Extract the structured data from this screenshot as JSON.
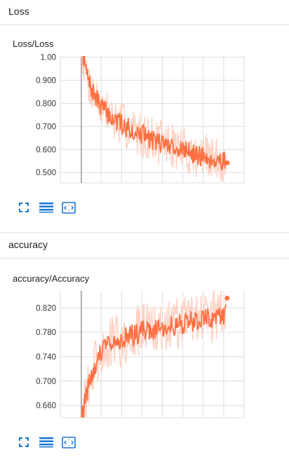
{
  "sections": [
    {
      "title": "Loss"
    },
    {
      "title": "accuracy"
    }
  ],
  "toolbar": {
    "icons": [
      "fit-to-screen-icon",
      "toggle-log-scale-icon",
      "fit-domain-icon"
    ]
  },
  "colors": {
    "series_main": "#ff7043",
    "series_raw": "#ffccbc",
    "grid": "#dddddd",
    "icon": "#1976d2"
  },
  "chart_data": [
    {
      "type": "line",
      "title": "Loss/Loss",
      "xlabel": "",
      "ylabel": "",
      "yticks": [
        "1.00",
        "0.900",
        "0.800",
        "0.700",
        "0.600",
        "0.500"
      ],
      "ylim": [
        0.455,
        1.005
      ],
      "grid": true,
      "smoothed_trend": [
        {
          "x": 0.0,
          "y": 1.05
        },
        {
          "x": 0.02,
          "y": 0.98
        },
        {
          "x": 0.05,
          "y": 0.89
        },
        {
          "x": 0.1,
          "y": 0.82
        },
        {
          "x": 0.15,
          "y": 0.78
        },
        {
          "x": 0.2,
          "y": 0.74
        },
        {
          "x": 0.25,
          "y": 0.72
        },
        {
          "x": 0.3,
          "y": 0.7
        },
        {
          "x": 0.4,
          "y": 0.67
        },
        {
          "x": 0.5,
          "y": 0.64
        },
        {
          "x": 0.6,
          "y": 0.62
        },
        {
          "x": 0.7,
          "y": 0.6
        },
        {
          "x": 0.8,
          "y": 0.575
        },
        {
          "x": 0.9,
          "y": 0.56
        },
        {
          "x": 1.0,
          "y": 0.55
        }
      ],
      "noise_amplitude": 0.045,
      "raw_noise_amplitude": 0.1,
      "last_value": 0.542
    },
    {
      "type": "line",
      "title": "accuracy/Accuracy",
      "xlabel": "",
      "ylabel": "",
      "yticks": [
        "0.820",
        "0.780",
        "0.740",
        "0.700",
        "0.660"
      ],
      "ylim": [
        0.64,
        0.848
      ],
      "grid": true,
      "smoothed_trend": [
        {
          "x": 0.0,
          "y": 0.64
        },
        {
          "x": 0.03,
          "y": 0.67
        },
        {
          "x": 0.06,
          "y": 0.7
        },
        {
          "x": 0.1,
          "y": 0.73
        },
        {
          "x": 0.15,
          "y": 0.75
        },
        {
          "x": 0.2,
          "y": 0.76
        },
        {
          "x": 0.3,
          "y": 0.77
        },
        {
          "x": 0.4,
          "y": 0.78
        },
        {
          "x": 0.5,
          "y": 0.785
        },
        {
          "x": 0.6,
          "y": 0.79
        },
        {
          "x": 0.7,
          "y": 0.795
        },
        {
          "x": 0.8,
          "y": 0.8
        },
        {
          "x": 0.9,
          "y": 0.805
        },
        {
          "x": 1.0,
          "y": 0.81
        }
      ],
      "noise_amplitude": 0.018,
      "raw_noise_amplitude": 0.045,
      "last_value": 0.836
    }
  ]
}
